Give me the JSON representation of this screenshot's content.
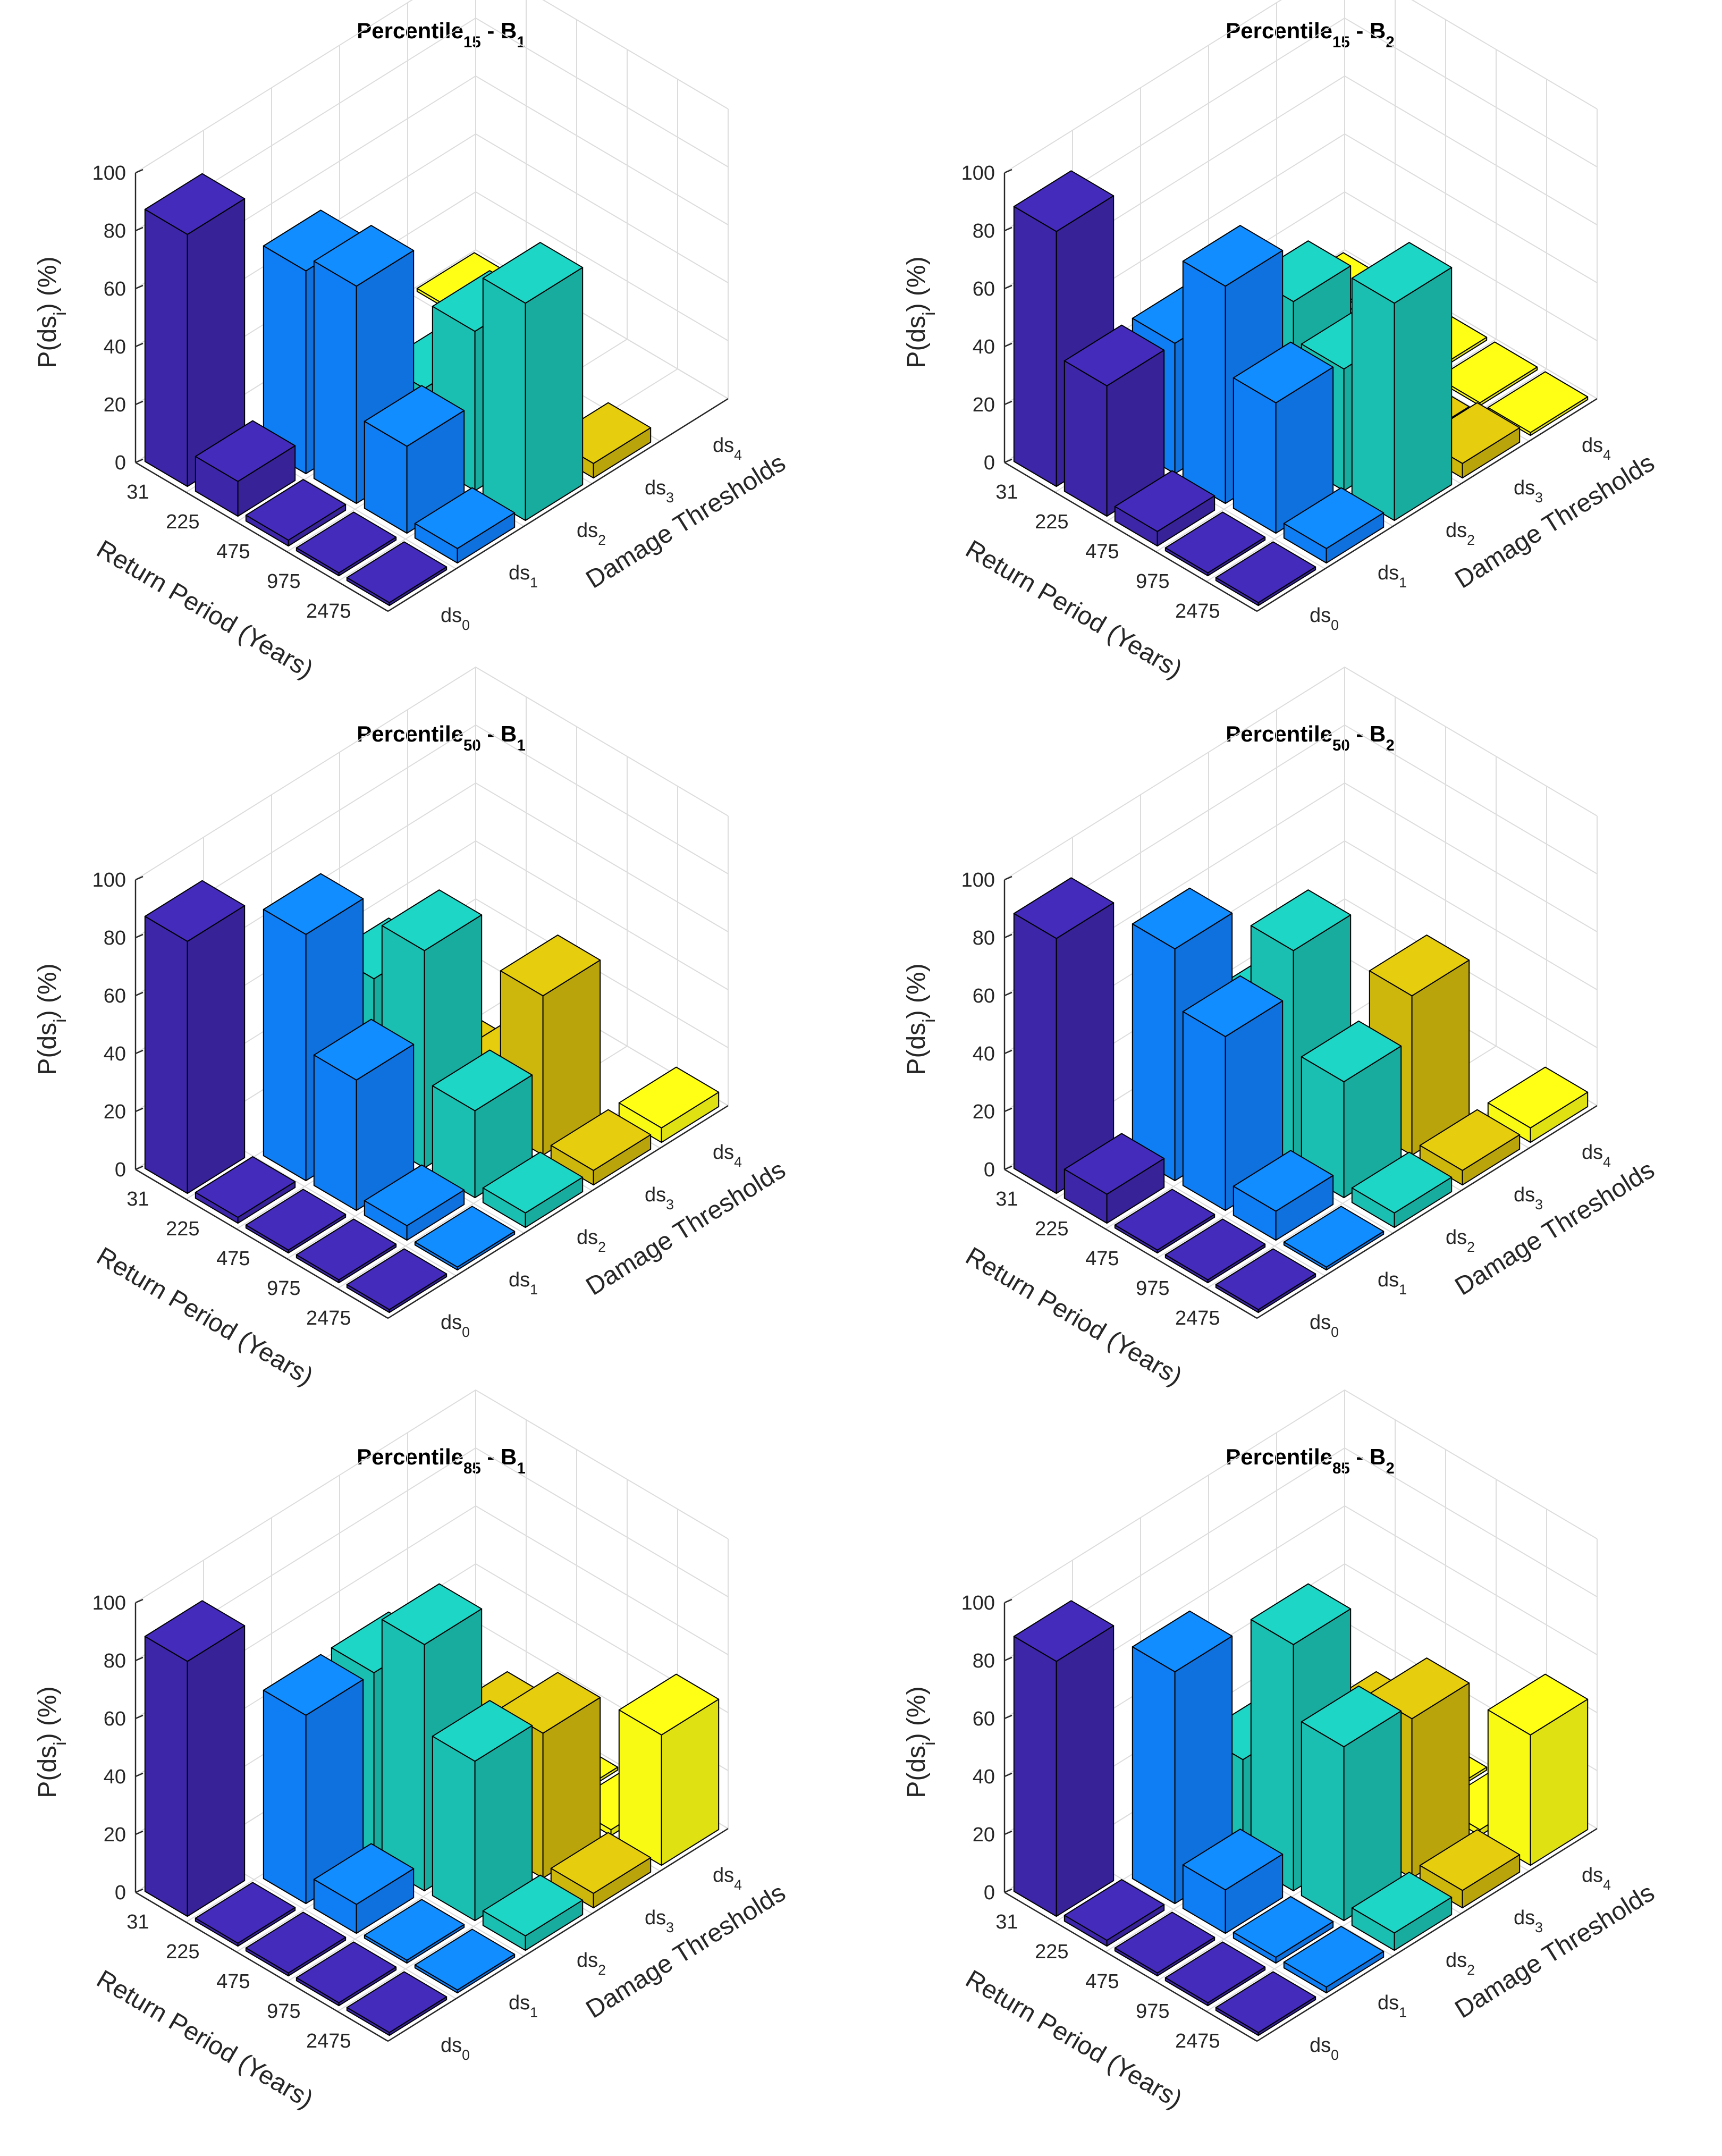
{
  "figure": {
    "title_prefix": "Percentile",
    "title_joiner": " - ",
    "title_var": "B"
  },
  "chart_data": [
    {
      "type": "bar3d",
      "percentile": "15",
      "building": "1",
      "title": "Percentile15 - B1",
      "xlabel": "Return Period (Years)",
      "ylabel": "Damage Thresholds",
      "zlabel": "P(dsi) (%)",
      "return_periods": [
        "31",
        "225",
        "475",
        "975",
        "2475"
      ],
      "damage_states": [
        "ds0",
        "ds1",
        "ds2",
        "ds3",
        "ds4"
      ],
      "zlim": [
        0,
        100
      ],
      "zticks": [
        0,
        20,
        40,
        60,
        80,
        100
      ],
      "values": [
        [
          87,
          0,
          12,
          0,
          1
        ],
        [
          12,
          70,
          12,
          0,
          4
        ],
        [
          2,
          75,
          25,
          0,
          0
        ],
        [
          1,
          30,
          55,
          0,
          0
        ],
        [
          1,
          5,
          75,
          5,
          0
        ]
      ]
    },
    {
      "type": "bar3d",
      "percentile": "15",
      "building": "2",
      "title": "Percentile15 - B2",
      "xlabel": "Return Period (Years)",
      "ylabel": "Damage Thresholds",
      "zlabel": "P(dsi) (%)",
      "return_periods": [
        "31",
        "225",
        "475",
        "975",
        "2475"
      ],
      "damage_states": [
        "ds0",
        "ds1",
        "ds2",
        "ds3",
        "ds4"
      ],
      "zlim": [
        0,
        100
      ],
      "zticks": [
        0,
        20,
        40,
        60,
        80,
        100
      ],
      "values": [
        [
          88,
          0,
          12,
          0,
          1
        ],
        [
          45,
          45,
          12,
          1,
          1
        ],
        [
          5,
          75,
          55,
          1,
          1
        ],
        [
          1,
          45,
          42,
          2,
          1
        ],
        [
          1,
          5,
          75,
          5,
          1
        ]
      ]
    },
    {
      "type": "bar3d",
      "percentile": "50",
      "building": "1",
      "title": "Percentile50 - B1",
      "xlabel": "Return Period (Years)",
      "ylabel": "Damage Thresholds",
      "zlabel": "P(dsi) (%)",
      "return_periods": [
        "31",
        "225",
        "475",
        "975",
        "2475"
      ],
      "damage_states": [
        "ds0",
        "ds1",
        "ds2",
        "ds3",
        "ds4"
      ],
      "zlim": [
        0,
        100
      ],
      "zticks": [
        0,
        20,
        40,
        60,
        80,
        100
      ],
      "values": [
        [
          87,
          0,
          8,
          0,
          0
        ],
        [
          2,
          85,
          55,
          10,
          0
        ],
        [
          1,
          45,
          75,
          15,
          0
        ],
        [
          1,
          5,
          30,
          55,
          0
        ],
        [
          1,
          1,
          5,
          5,
          5
        ]
      ]
    },
    {
      "type": "bar3d",
      "percentile": "50",
      "building": "2",
      "title": "Percentile50 - B2",
      "xlabel": "Return Period (Years)",
      "ylabel": "Damage Thresholds",
      "zlabel": "P(dsi) (%)",
      "return_periods": [
        "31",
        "225",
        "475",
        "975",
        "2475"
      ],
      "damage_states": [
        "ds0",
        "ds1",
        "ds2",
        "ds3",
        "ds4"
      ],
      "zlim": [
        0,
        100
      ],
      "zticks": [
        0,
        20,
        40,
        60,
        80,
        100
      ],
      "values": [
        [
          88,
          0,
          12,
          0,
          0
        ],
        [
          10,
          80,
          40,
          8,
          0
        ],
        [
          1,
          60,
          75,
          10,
          0
        ],
        [
          1,
          10,
          40,
          55,
          0
        ],
        [
          1,
          1,
          5,
          5,
          5
        ]
      ]
    },
    {
      "type": "bar3d",
      "percentile": "85",
      "building": "1",
      "title": "Percentile85 - B1",
      "xlabel": "Return Period (Years)",
      "ylabel": "Damage Thresholds",
      "zlabel": "P(dsi) (%)",
      "return_periods": [
        "31",
        "225",
        "475",
        "975",
        "2475"
      ],
      "damage_states": [
        "ds0",
        "ds1",
        "ds2",
        "ds3",
        "ds4"
      ],
      "zlim": [
        0,
        100
      ],
      "zticks": [
        0,
        20,
        40,
        60,
        80,
        100
      ],
      "values": [
        [
          88,
          0,
          2,
          1,
          0
        ],
        [
          1,
          65,
          65,
          2,
          1
        ],
        [
          1,
          10,
          85,
          40,
          1
        ],
        [
          1,
          1,
          55,
          50,
          2
        ],
        [
          1,
          1,
          5,
          5,
          45
        ]
      ]
    },
    {
      "type": "bar3d",
      "percentile": "85",
      "building": "2",
      "title": "Percentile85 - B2",
      "xlabel": "Return Period (Years)",
      "ylabel": "Damage Thresholds",
      "zlabel": "P(dsi) (%)",
      "return_periods": [
        "31",
        "225",
        "475",
        "975",
        "2475"
      ],
      "damage_states": [
        "ds0",
        "ds1",
        "ds2",
        "ds3",
        "ds4"
      ],
      "zlim": [
        0,
        100
      ],
      "zticks": [
        0,
        20,
        40,
        60,
        80,
        100
      ],
      "values": [
        [
          88,
          0,
          5,
          8,
          0
        ],
        [
          2,
          80,
          35,
          5,
          1
        ],
        [
          1,
          15,
          85,
          40,
          1
        ],
        [
          1,
          2,
          60,
          55,
          2
        ],
        [
          1,
          2,
          6,
          6,
          45
        ]
      ]
    }
  ],
  "colors": {
    "ds0": "#3d26a8",
    "ds1": "#0f7ef5",
    "ds2": "#1bbfb1",
    "ds3": "#cdb70c",
    "ds4": "#f9fa14",
    "grid": "#dcdcdc",
    "axis": "#262626"
  }
}
